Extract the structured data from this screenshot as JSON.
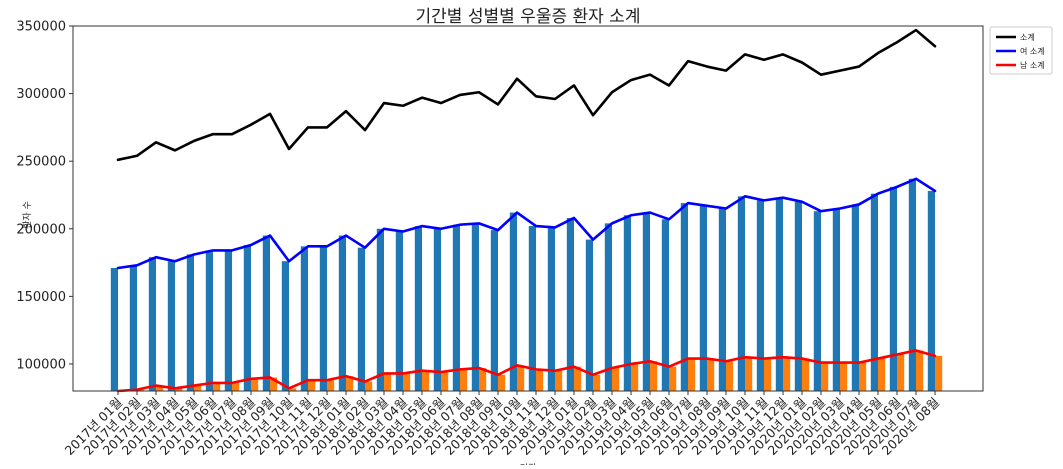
{
  "chart_data": {
    "type": "bar+line",
    "title": "기간별 성별별 우울증 환자 소계",
    "xlabel": "기간",
    "ylabel": "환자 수",
    "ylim": [
      80000,
      350000
    ],
    "yticks": [
      100000,
      150000,
      200000,
      250000,
      300000,
      350000
    ],
    "ytick_labels": [
      "100000",
      "150000",
      "200000",
      "250000",
      "300000",
      "350000"
    ],
    "grid": false,
    "legend_position": "outside-top-right",
    "categories": [
      "2017년 01월",
      "2017년 02월",
      "2017년 03월",
      "2017년 04월",
      "2017년 05월",
      "2017년 06월",
      "2017년 07월",
      "2017년 08월",
      "2017년 09월",
      "2017년 10월",
      "2017년 11월",
      "2017년 12월",
      "2018년 01월",
      "2018년 02월",
      "2018년 03월",
      "2018년 04월",
      "2018년 05월",
      "2018년 06월",
      "2018년 07월",
      "2018년 08월",
      "2018년 09월",
      "2018년 10월",
      "2018년 11월",
      "2018년 12월",
      "2019년 01월",
      "2019년 02월",
      "2019년 03월",
      "2019년 04월",
      "2019년 05월",
      "2019년 06월",
      "2019년 07월",
      "2019년 08월",
      "2019년 09월",
      "2019년 10월",
      "2019년 11월",
      "2019년 12월",
      "2020년 01월",
      "2020년 02월",
      "2020년 03월",
      "2020년 04월",
      "2020년 05월",
      "2020년 06월",
      "2020년 07월",
      "2020년 08월"
    ],
    "bar_series": [
      {
        "color": "#1f77b4",
        "values": [
          171000,
          173000,
          179000,
          176000,
          181000,
          184000,
          184000,
          188000,
          195000,
          176000,
          187000,
          187000,
          195000,
          186000,
          200000,
          198000,
          202000,
          200000,
          203000,
          204000,
          199000,
          212000,
          202000,
          201000,
          208000,
          192000,
          204000,
          210000,
          212000,
          207000,
          219000,
          217000,
          215000,
          224000,
          221000,
          223000,
          220000,
          213000,
          215000,
          218000,
          226000,
          231000,
          237000,
          228000
        ]
      },
      {
        "color": "#ff7f0e",
        "values": [
          80000,
          81000,
          84000,
          82000,
          84000,
          86000,
          86000,
          89000,
          90000,
          82000,
          88000,
          88000,
          91000,
          87000,
          93000,
          93000,
          95000,
          94000,
          96000,
          97000,
          92000,
          99000,
          96000,
          95000,
          98000,
          92000,
          97000,
          100000,
          102000,
          98000,
          104000,
          104000,
          102000,
          105000,
          104000,
          105000,
          104000,
          101000,
          101000,
          101000,
          104000,
          107000,
          110000,
          106000
        ]
      }
    ],
    "series": [
      {
        "name": "소계",
        "color": "#000000",
        "values": [
          251000,
          254000,
          264000,
          258000,
          265000,
          270000,
          270000,
          277000,
          285000,
          259000,
          275000,
          275000,
          287000,
          273000,
          293000,
          291000,
          297000,
          293000,
          299000,
          301000,
          292000,
          311000,
          298000,
          296000,
          306000,
          284000,
          301000,
          310000,
          314000,
          306000,
          324000,
          320000,
          317000,
          329000,
          325000,
          329000,
          323000,
          314000,
          317000,
          320000,
          330000,
          338000,
          347000,
          335000
        ]
      },
      {
        "name": "여 소계",
        "color": "#0000ff",
        "values": [
          171000,
          173000,
          179000,
          176000,
          181000,
          184000,
          184000,
          188000,
          195000,
          176000,
          187000,
          187000,
          195000,
          186000,
          200000,
          198000,
          202000,
          200000,
          203000,
          204000,
          199000,
          212000,
          202000,
          201000,
          208000,
          192000,
          204000,
          210000,
          212000,
          207000,
          219000,
          217000,
          215000,
          224000,
          221000,
          223000,
          220000,
          213000,
          215000,
          218000,
          226000,
          231000,
          237000,
          228000
        ]
      },
      {
        "name": "남 소계",
        "color": "#ff0000",
        "values": [
          80000,
          81000,
          84000,
          82000,
          84000,
          86000,
          86000,
          89000,
          90000,
          82000,
          88000,
          88000,
          91000,
          87000,
          93000,
          93000,
          95000,
          94000,
          96000,
          97000,
          92000,
          99000,
          96000,
          95000,
          98000,
          92000,
          97000,
          100000,
          102000,
          98000,
          104000,
          104000,
          102000,
          105000,
          104000,
          105000,
          104000,
          101000,
          101000,
          101000,
          104000,
          107000,
          110000,
          106000
        ]
      }
    ]
  }
}
